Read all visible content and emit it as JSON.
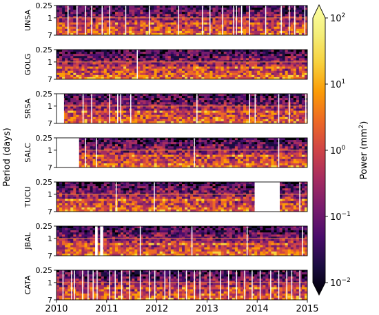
{
  "chart_data": {
    "type": "heatmap",
    "ylabel": "Period (days)",
    "colorbar": {
      "label": "Power (mm",
      "label_sup": "2",
      "label_tail": ")",
      "scale": "log",
      "range": [
        0.01,
        100
      ],
      "colormap": "inferno",
      "ticks": [
        {
          "base": "10",
          "exp": "2",
          "value": 100
        },
        {
          "base": "10",
          "exp": "1",
          "value": 10
        },
        {
          "base": "10",
          "exp": "0",
          "value": 1
        },
        {
          "base": "10",
          "exp": "−1",
          "value": 0.1
        },
        {
          "base": "10",
          "exp": "−2",
          "value": 0.01
        }
      ]
    },
    "x_ticks": [
      "2010",
      "2011",
      "2012",
      "2013",
      "2014",
      "2015"
    ],
    "x_range": [
      2010,
      2015
    ],
    "y_ticks": [
      "0.25",
      "1",
      "7"
    ],
    "y_range_days": [
      0.25,
      7
    ],
    "y_scale": "log",
    "stations": [
      {
        "name": "UNSA",
        "gaps": [
          [
            2010.22,
            2010.24
          ],
          [
            2010.4,
            2010.41
          ],
          [
            2010.57,
            2010.59
          ],
          [
            2010.69,
            2010.7
          ],
          [
            2010.9,
            2010.92
          ],
          [
            2011.05,
            2011.06
          ],
          [
            2011.37,
            2011.39
          ],
          [
            2011.84,
            2011.86
          ],
          [
            2012.42,
            2012.44
          ],
          [
            2012.9,
            2012.92
          ],
          [
            2013.05,
            2013.06
          ],
          [
            2013.3,
            2013.32
          ],
          [
            2013.52,
            2013.53
          ],
          [
            2013.58,
            2013.59
          ],
          [
            2013.68,
            2013.7
          ],
          [
            2013.84,
            2013.86
          ],
          [
            2014.16,
            2014.18
          ],
          [
            2014.47,
            2014.49
          ],
          [
            2014.63,
            2014.64
          ],
          [
            2014.74,
            2014.76
          ],
          [
            2014.94,
            2014.96
          ]
        ]
      },
      {
        "name": "GOLG",
        "gaps": [
          [
            2011.6,
            2011.62
          ]
        ]
      },
      {
        "name": "SRSA",
        "gaps": [
          [
            2010.0,
            2010.15
          ],
          [
            2010.52,
            2010.54
          ],
          [
            2010.69,
            2010.71
          ],
          [
            2011.05,
            2011.07
          ],
          [
            2011.21,
            2011.22
          ],
          [
            2011.27,
            2011.28
          ],
          [
            2011.47,
            2011.49
          ],
          [
            2012.79,
            2012.81
          ],
          [
            2013.84,
            2013.86
          ],
          [
            2013.95,
            2013.96
          ],
          [
            2014.42,
            2014.44
          ],
          [
            2014.63,
            2014.64
          ],
          [
            2014.96,
            2014.98
          ]
        ]
      },
      {
        "name": "SALC",
        "gaps": [
          [
            2010.0,
            2010.45
          ],
          [
            2010.57,
            2010.59
          ],
          [
            2010.79,
            2010.8
          ],
          [
            2012.74,
            2012.75
          ],
          [
            2014.42,
            2014.44
          ]
        ]
      },
      {
        "name": "TUCU",
        "gaps": [
          [
            2011.18,
            2011.2
          ],
          [
            2011.94,
            2011.96
          ],
          [
            2013.95,
            2014.45
          ],
          [
            2014.84,
            2014.86
          ]
        ]
      },
      {
        "name": "JBAL",
        "gaps": [
          [
            2010.77,
            2010.82
          ],
          [
            2010.87,
            2010.93
          ],
          [
            2011.66,
            2011.68
          ],
          [
            2012.69,
            2012.71
          ],
          [
            2013.79,
            2013.81
          ],
          [
            2014.89,
            2014.91
          ]
        ]
      },
      {
        "name": "CATA",
        "gaps": [
          [
            2010.12,
            2010.13
          ],
          [
            2010.29,
            2010.3
          ],
          [
            2010.35,
            2010.37
          ],
          [
            2010.51,
            2010.53
          ],
          [
            2010.62,
            2010.63
          ],
          [
            2010.72,
            2010.74
          ],
          [
            2010.8,
            2010.81
          ],
          [
            2011.05,
            2011.06
          ],
          [
            2011.16,
            2011.18
          ],
          [
            2011.29,
            2011.3
          ],
          [
            2011.45,
            2011.47
          ],
          [
            2011.66,
            2011.68
          ],
          [
            2011.84,
            2011.86
          ],
          [
            2011.95,
            2011.97
          ],
          [
            2012.15,
            2012.16
          ],
          [
            2012.25,
            2012.26
          ],
          [
            2012.42,
            2012.44
          ],
          [
            2012.58,
            2012.6
          ],
          [
            2012.74,
            2012.76
          ],
          [
            2012.85,
            2012.86
          ],
          [
            2013.05,
            2013.06
          ],
          [
            2013.26,
            2013.28
          ],
          [
            2013.42,
            2013.44
          ],
          [
            2013.58,
            2013.6
          ],
          [
            2013.74,
            2013.75
          ],
          [
            2013.89,
            2013.91
          ],
          [
            2014.05,
            2014.07
          ],
          [
            2014.26,
            2014.28
          ],
          [
            2014.42,
            2014.44
          ],
          [
            2014.58,
            2014.6
          ],
          [
            2014.68,
            2014.7
          ],
          [
            2014.84,
            2014.86
          ]
        ]
      }
    ]
  }
}
